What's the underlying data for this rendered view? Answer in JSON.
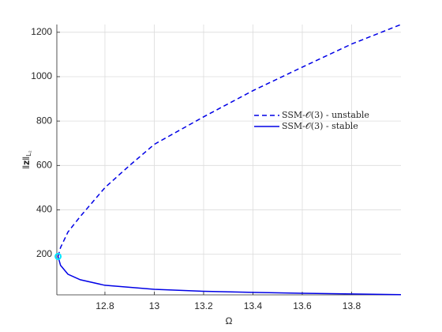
{
  "chart_data": {
    "type": "line",
    "xlabel": "Ω",
    "ylabel": {
      "main": "‖𝐳‖",
      "sub": "L₂"
    },
    "xlim": [
      12.605,
      14.0
    ],
    "xticks": [
      12.8,
      13,
      13.2,
      13.4,
      13.6,
      13.8
    ],
    "ylim": [
      17,
      1235
    ],
    "yticks": [
      200,
      400,
      600,
      800,
      1000,
      1200
    ],
    "grid": true,
    "legend": "upper-right",
    "series": [
      {
        "name": "SSM-𝒪(3) - unstable",
        "color": "#0000e6",
        "dash": true,
        "x": [
          12.61,
          12.62,
          12.65,
          12.7,
          12.8,
          12.9,
          13,
          13.2,
          13.4,
          13.6,
          13.8,
          14
        ],
        "values": [
          190,
          230,
          300,
          370,
          500,
          600,
          695,
          819,
          937,
          1043,
          1147,
          1235
        ]
      },
      {
        "name": "SSM-𝒪(3) - stable",
        "color": "#0000e6",
        "dash": false,
        "x": [
          12.61,
          12.62,
          12.65,
          12.7,
          12.8,
          13,
          13.2,
          13.4,
          13.6,
          13.8,
          14
        ],
        "values": [
          190,
          150,
          110,
          85,
          60,
          42,
          33,
          28,
          24,
          21,
          18
        ]
      }
    ],
    "points": [
      {
        "x": 12.61,
        "y": 190,
        "color": "#00e5ff"
      }
    ]
  }
}
